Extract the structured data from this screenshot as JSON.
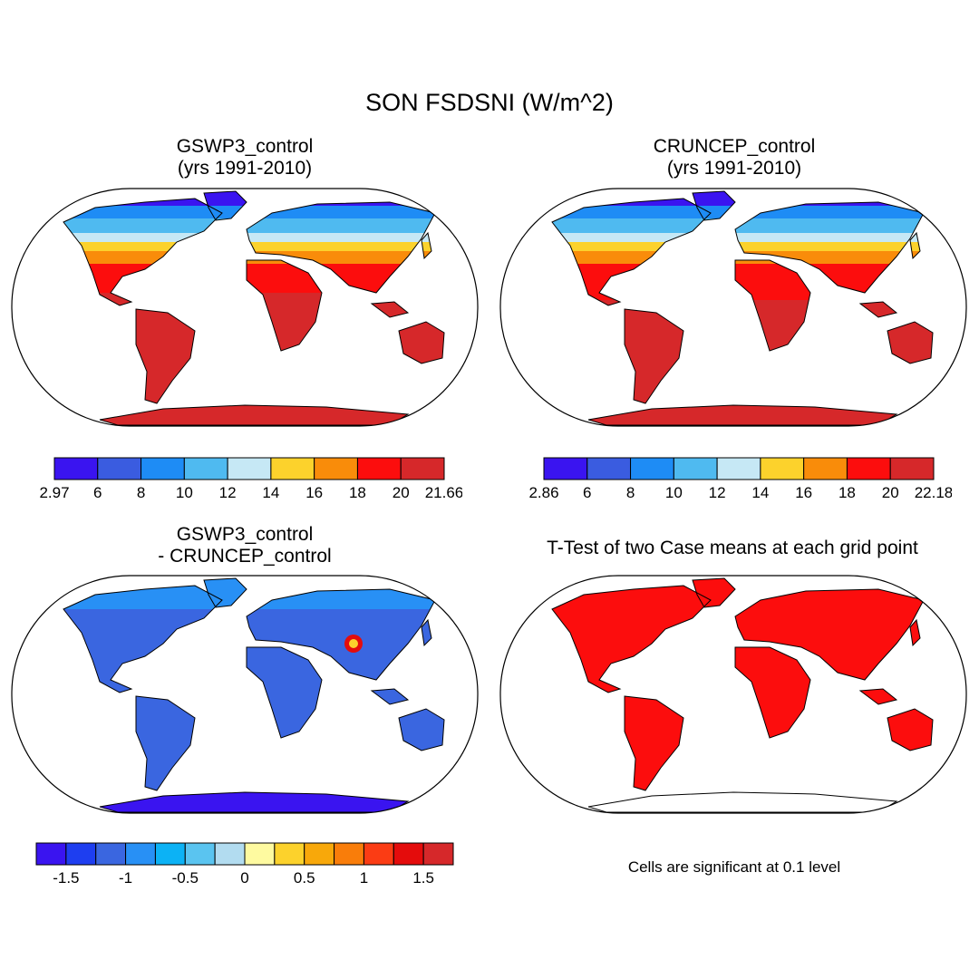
{
  "main_title": "SON FSDSNI (W/m^2)",
  "panels": [
    {
      "id": "gswp3",
      "title_line1": "GSWP3_control",
      "title_line2": "(yrs 1991-2010)",
      "colorbar": {
        "colors": [
          "#3a14f0",
          "#3a5ce0",
          "#1e8cf5",
          "#4fbaf0",
          "#c6e8f5",
          "#fcd22c",
          "#f98c0a",
          "#fc0d0d",
          "#d6282a"
        ],
        "labels": [
          "2.97",
          "6",
          "8",
          "10",
          "12",
          "14",
          "16",
          "18",
          "20",
          "21.66"
        ]
      }
    },
    {
      "id": "cruncep",
      "title_line1": "CRUNCEP_control",
      "title_line2": "(yrs 1991-2010)",
      "colorbar": {
        "colors": [
          "#3a14f0",
          "#3a5ce0",
          "#1e8cf5",
          "#4fbaf0",
          "#c6e8f5",
          "#fcd22c",
          "#f98c0a",
          "#fc0d0d",
          "#d6282a"
        ],
        "labels": [
          "2.86",
          "6",
          "8",
          "10",
          "12",
          "14",
          "16",
          "18",
          "20",
          "22.18"
        ]
      }
    },
    {
      "id": "difference",
      "title_line1": "GSWP3_control",
      "title_line2": "- CRUNCEP_control",
      "colorbar": {
        "colors": [
          "#3a14f0",
          "#1e3ef0",
          "#3a66e0",
          "#2890f5",
          "#0cb2f5",
          "#5ac4f0",
          "#b2dcf0",
          "#fefaa0",
          "#fcd22c",
          "#f8a80a",
          "#f97d0a",
          "#fb3c14",
          "#e40c0c",
          "#d6282a"
        ],
        "labels": [
          "-1.5",
          "-1",
          "-0.5",
          "0",
          "0.5",
          "1",
          "1.5"
        ]
      }
    },
    {
      "id": "ttest",
      "title_line1": "T-Test of two Case means at each grid point",
      "title_line2": "",
      "note": "Cells are significant at 0.1 level"
    }
  ],
  "map_colors": {
    "ocean": "#ffffff",
    "outline": "#000000",
    "zonal_1": [
      "#3a14f0",
      "#1e8cf5",
      "#4fbaf0",
      "#c6e8f5",
      "#fcd22c",
      "#f98c0a",
      "#fc0d0d",
      "#d6282a"
    ],
    "diff_land": "#3a66e0",
    "ttest_land": "#fc0d0d"
  }
}
